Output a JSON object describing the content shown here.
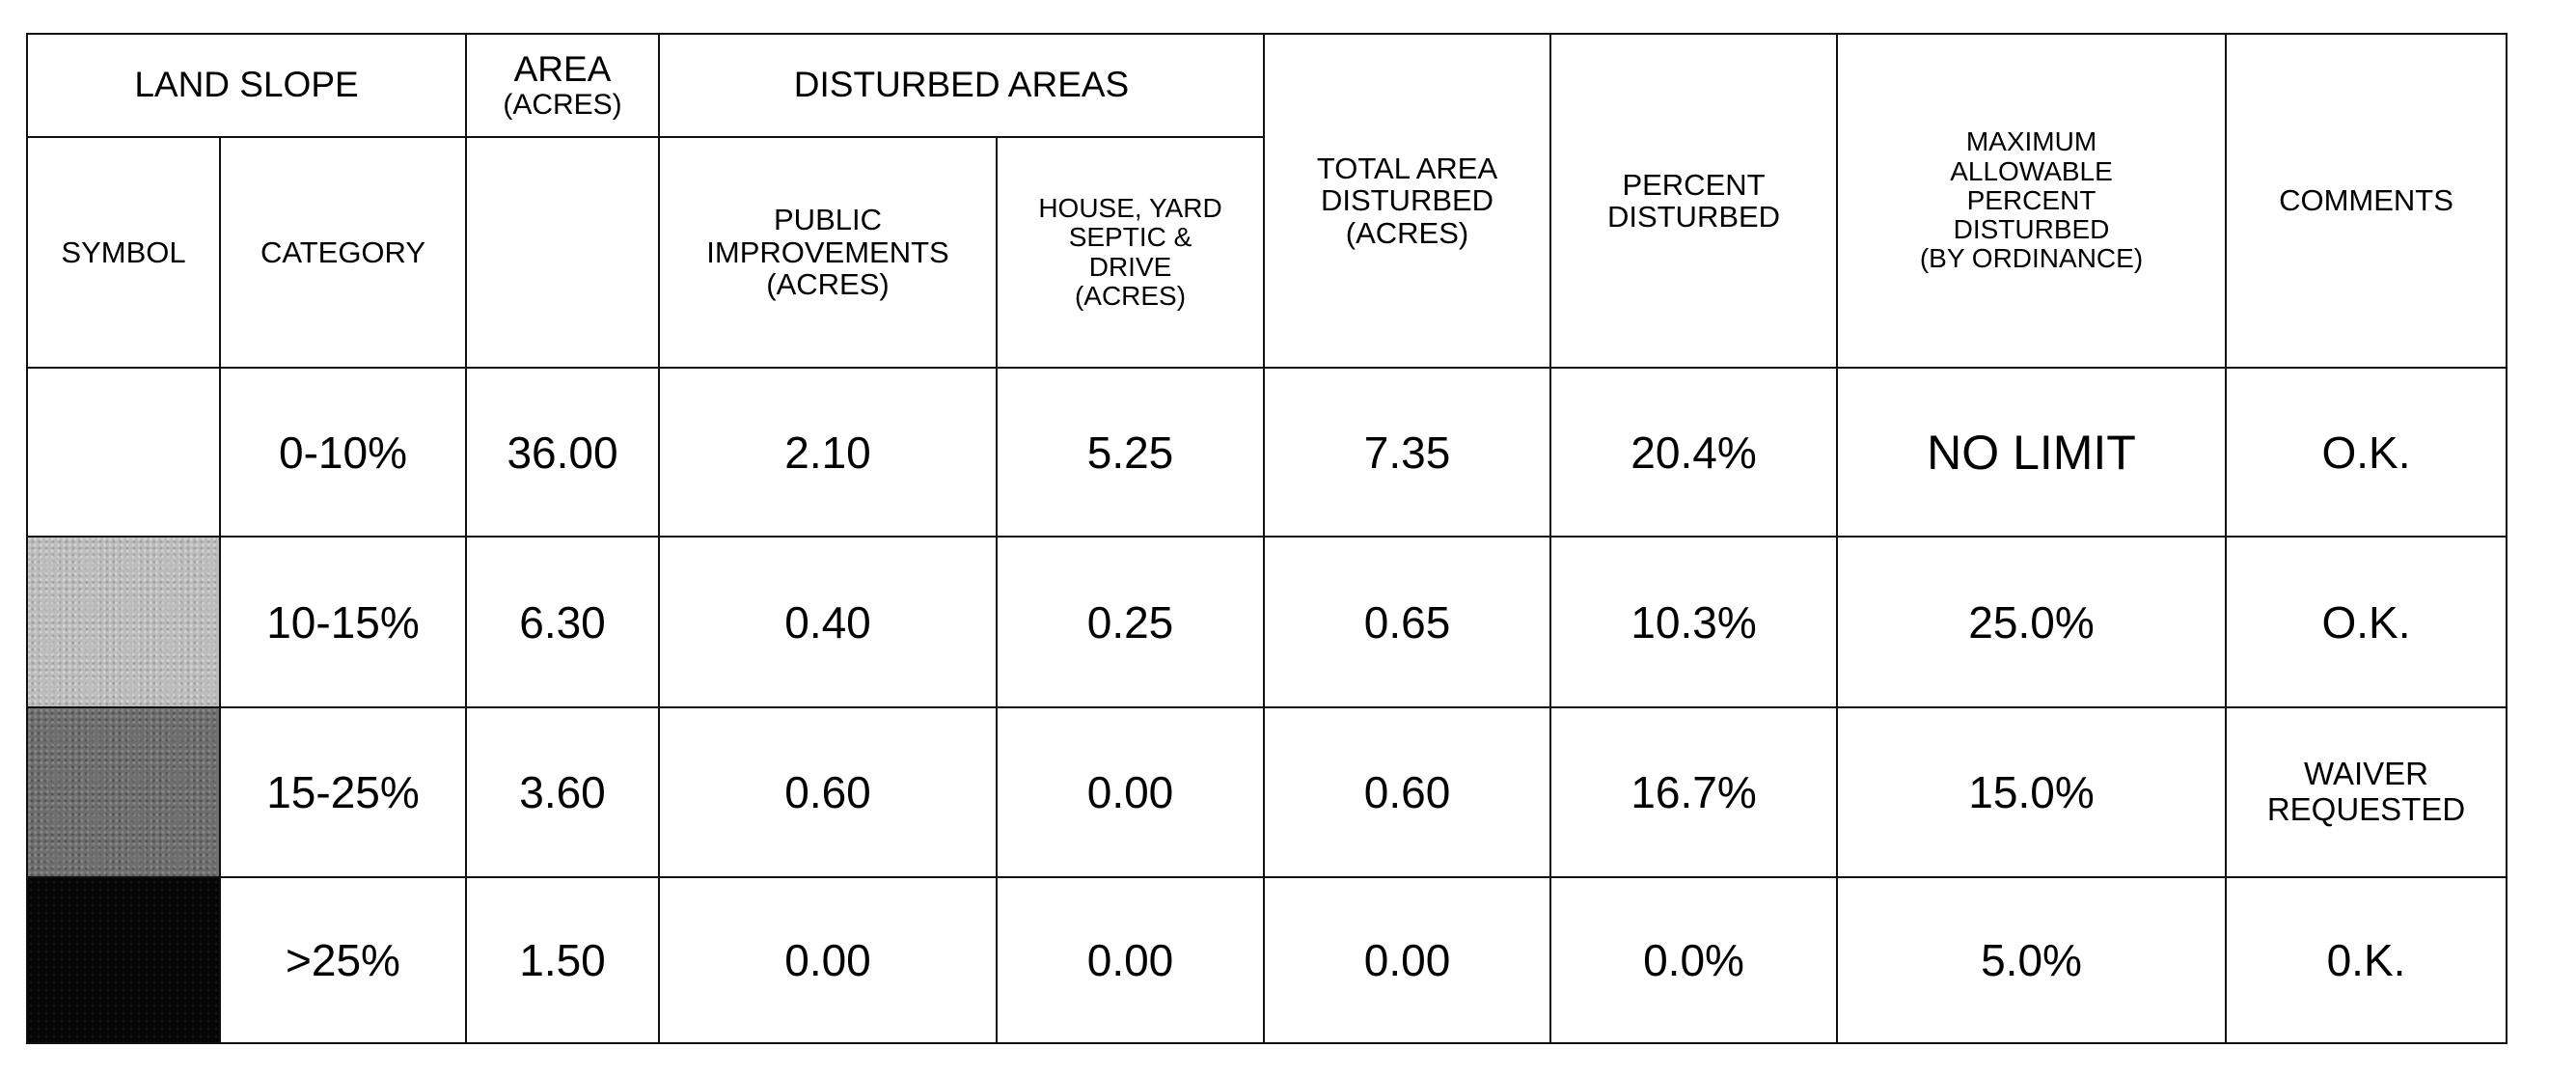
{
  "headers": {
    "land_slope": "LAND SLOPE",
    "area_line1": "AREA",
    "area_line2": "(ACRES)",
    "disturbed_areas": "DISTURBED AREAS",
    "total_area_line1": "TOTAL AREA",
    "total_area_line2": "DISTURBED",
    "total_area_line3": "(ACRES)",
    "percent_line1": "PERCENT",
    "percent_line2": "DISTURBED",
    "max_line1": "MAXIMUM",
    "max_line2": "ALLOWABLE",
    "max_line3": "PERCENT",
    "max_line4": "DISTURBED",
    "max_line5": "(BY ORDINANCE)",
    "comments": "COMMENTS",
    "symbol": "SYMBOL",
    "category": "CATEGORY",
    "public_line1": "PUBLIC",
    "public_line2": "IMPROVEMENTS",
    "public_line3": "(ACRES)",
    "house_line1": "HOUSE, YARD",
    "house_line2": "SEPTIC &",
    "house_line3": "DRIVE",
    "house_line4": "(ACRES)"
  },
  "rows": [
    {
      "symbol": "none",
      "category": "0-10%",
      "area": "36.00",
      "public": "2.10",
      "house": "5.25",
      "total": "7.35",
      "percent": "20.4%",
      "max": "NO LIMIT",
      "comment": "O.K."
    },
    {
      "symbol": "light-gray",
      "category": "10-15%",
      "area": "6.30",
      "public": "0.40",
      "house": "0.25",
      "total": "0.65",
      "percent": "10.3%",
      "max": "25.0%",
      "comment": "O.K."
    },
    {
      "symbol": "dark-gray",
      "category": "15-25%",
      "area": "3.60",
      "public": "0.60",
      "house": "0.00",
      "total": "0.60",
      "percent": "16.7%",
      "max": "15.0%",
      "comment_line1": "WAIVER",
      "comment_line2": "REQUESTED"
    },
    {
      "symbol": "black",
      "category": ">25%",
      "area": "1.50",
      "public": "0.00",
      "house": "0.00",
      "total": "0.00",
      "percent": "0.0%",
      "max": "5.0%",
      "comment": "0.K."
    }
  ],
  "colors": {
    "swatch_light": "#bcbcbc",
    "swatch_dark": "#6e6e6e",
    "swatch_black": "#050505",
    "border": "#111111"
  }
}
